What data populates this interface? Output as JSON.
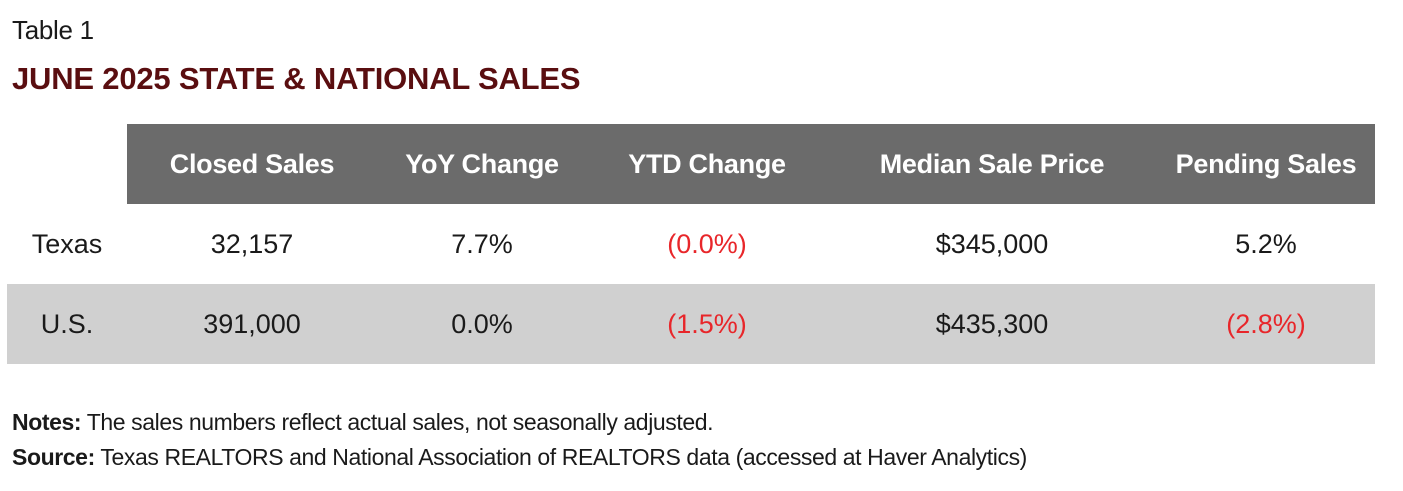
{
  "table_label": "Table 1",
  "table_title": "JUNE 2025 STATE & NATIONAL SALES",
  "columns": [
    "Closed Sales",
    "YoY Change",
    "YTD Change",
    "Median Sale Price",
    "Pending Sales"
  ],
  "rows": [
    {
      "region": "Texas",
      "closed_sales": "32,157",
      "yoy_change": "7.7%",
      "ytd_change": "(0.0%)",
      "median_sale_price": "$345,000",
      "pending_sales": "5.2%"
    },
    {
      "region": "U.S.",
      "closed_sales": "391,000",
      "yoy_change": "0.0%",
      "ytd_change": "(1.5%)",
      "median_sale_price": "$435,300",
      "pending_sales": "(2.8%)"
    }
  ],
  "notes": {
    "notes_label": "Notes:",
    "notes_text": " The sales numbers reflect actual sales, not seasonally adjusted.",
    "source_label": "Source:",
    "source_text": " Texas REALTORS and National Association of REALTORS data (accessed at Haver Analytics)"
  },
  "colors": {
    "title": "#5a0e10",
    "header_bg": "#6b6b6b",
    "alt_row_bg": "#d0d0d0",
    "negative": "#e8262a"
  }
}
